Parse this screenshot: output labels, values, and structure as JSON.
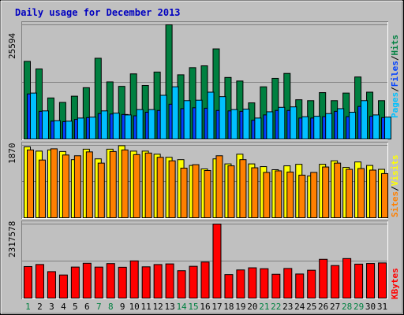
{
  "title": "Daily usage for December 2013",
  "colors": {
    "background": "#c0c0c0",
    "title": "#0000c0",
    "hits": "#008040",
    "files": "#0040ff",
    "pages": "#00c0ff",
    "visits": "#ffff00",
    "sites": "#ff8000",
    "kbytes": "#ff0000",
    "weekday_label": "#000000",
    "weekend_label": "#008040"
  },
  "axis_labels": {
    "top_max": "25594",
    "middle_max": "1870",
    "bottom_max": "2317578"
  },
  "legend": {
    "top": [
      {
        "text": "Pages",
        "color": "#00c0ff"
      },
      {
        "text": "/",
        "color": "#000000"
      },
      {
        "text": "Files",
        "color": "#0040ff"
      },
      {
        "text": "/",
        "color": "#000000"
      },
      {
        "text": "Hits",
        "color": "#008040"
      }
    ],
    "middle": [
      {
        "text": "Sites",
        "color": "#ff8000"
      },
      {
        "text": "/",
        "color": "#000000"
      },
      {
        "text": "Visits",
        "color": "#ffff00"
      }
    ],
    "bottom": [
      {
        "text": "KBytes",
        "color": "#ff0000"
      }
    ]
  },
  "chart_data": {
    "type": "bar",
    "title": "Daily usage for December 2013",
    "categories": [
      "1",
      "2",
      "3",
      "4",
      "5",
      "6",
      "7",
      "8",
      "9",
      "10",
      "11",
      "12",
      "13",
      "14",
      "15",
      "16",
      "17",
      "18",
      "19",
      "20",
      "21",
      "22",
      "23",
      "24",
      "25",
      "26",
      "27",
      "28",
      "29",
      "30",
      "31"
    ],
    "weekend_days": [
      "1",
      "7",
      "8",
      "14",
      "15",
      "21",
      "22",
      "28",
      "29"
    ],
    "panels": [
      {
        "name": "hits-files-pages",
        "ylim": [
          0,
          25594
        ],
        "series": [
          {
            "name": "Hits",
            "color": "#008040",
            "values": [
              17400,
              15700,
              9200,
              8200,
              9600,
              11500,
              18100,
              12800,
              11800,
              14600,
              12000,
              15000,
              25594,
              14400,
              16000,
              16400,
              20200,
              13800,
              13000,
              8100,
              11700,
              13600,
              14700,
              8800,
              8600,
              10400,
              8600,
              10300,
              13900,
              10500,
              8600
            ]
          },
          {
            "name": "Files",
            "color": "#0040ff",
            "values": [
              10100,
              6200,
              4000,
              3900,
              4400,
              4800,
              5700,
              5600,
              5500,
              5200,
              6000,
              6400,
              7800,
              6800,
              7000,
              6900,
              6400,
              6300,
              6200,
              4200,
              5400,
              6400,
              6400,
              4700,
              4700,
              5000,
              6200,
              5000,
              7300,
              5100,
              4800
            ]
          },
          {
            "name": "Pages",
            "color": "#00c0ff",
            "values": [
              10300,
              6300,
              4100,
              4000,
              4700,
              4900,
              6300,
              5800,
              5400,
              6600,
              6600,
              9800,
              11700,
              8600,
              8700,
              10500,
              9500,
              6600,
              6700,
              4700,
              6100,
              7100,
              7200,
              5000,
              5100,
              5700,
              6800,
              6000,
              8600,
              5400,
              4900
            ]
          }
        ]
      },
      {
        "name": "visits-sites",
        "ylim": [
          0,
          1870
        ],
        "series": [
          {
            "name": "Visits",
            "color": "#ffff00",
            "values": [
              1830,
              1720,
              1750,
              1710,
              1500,
              1770,
              1520,
              1770,
              1860,
              1720,
              1720,
              1640,
              1560,
              1500,
              1350,
              1260,
              1520,
              1390,
              1640,
              1390,
              1320,
              1240,
              1340,
              1380,
              1080,
              1380,
              1470,
              1300,
              1440,
              1350,
              1250
            ]
          },
          {
            "name": "Sites",
            "color": "#ff8000",
            "values": [
              1750,
              1490,
              1780,
              1620,
              1600,
              1700,
              1410,
              1710,
              1750,
              1630,
              1670,
              1560,
              1470,
              1280,
              1370,
              1220,
              1600,
              1340,
              1500,
              1290,
              1170,
              1210,
              1180,
              1100,
              1170,
              1310,
              1410,
              1250,
              1270,
              1230,
              1140
            ]
          }
        ]
      },
      {
        "name": "kbytes",
        "ylim": [
          0,
          2317578
        ],
        "series": [
          {
            "name": "KBytes",
            "color": "#ff0000",
            "values": [
              987000,
              1051000,
              828000,
              723000,
              971000,
              1090000,
              970000,
              1080000,
              965000,
              1165000,
              979000,
              1050000,
              1070000,
              857000,
              995000,
              1128000,
              2317578,
              736000,
              881000,
              948000,
              920000,
              746000,
              927000,
              754000,
              872000,
              1214000,
              1018000,
              1237000,
              1063000,
              1083000,
              1100000
            ]
          }
        ]
      }
    ]
  }
}
